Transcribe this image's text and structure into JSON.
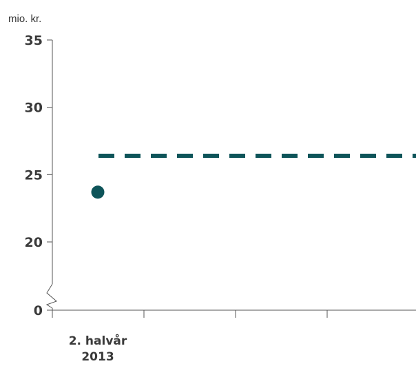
{
  "chart_data": {
    "type": "scatter",
    "ylabel": "mio. kr.",
    "y_ticks": [
      {
        "label": "35",
        "value": 35
      },
      {
        "label": "30",
        "value": 30
      },
      {
        "label": "25",
        "value": 25
      },
      {
        "label": "20",
        "value": 20
      },
      {
        "label": "0",
        "value": 0
      }
    ],
    "y_axis_break": {
      "below": 20,
      "above": 0
    },
    "x_categories": [
      {
        "label_line1": "2. halvår",
        "label_line2": "2013"
      },
      {
        "label_line1": "",
        "label_line2": ""
      },
      {
        "label_line1": "",
        "label_line2": ""
      },
      {
        "label_line1": "",
        "label_line2": ""
      }
    ],
    "points": [
      {
        "category_index": 0,
        "value": 23.7
      }
    ],
    "reference_line": {
      "value": 26.4,
      "style": "dashed"
    },
    "colors": {
      "point": "#0e5459",
      "reference_line": "#0e5459",
      "axis": "#555555"
    }
  }
}
